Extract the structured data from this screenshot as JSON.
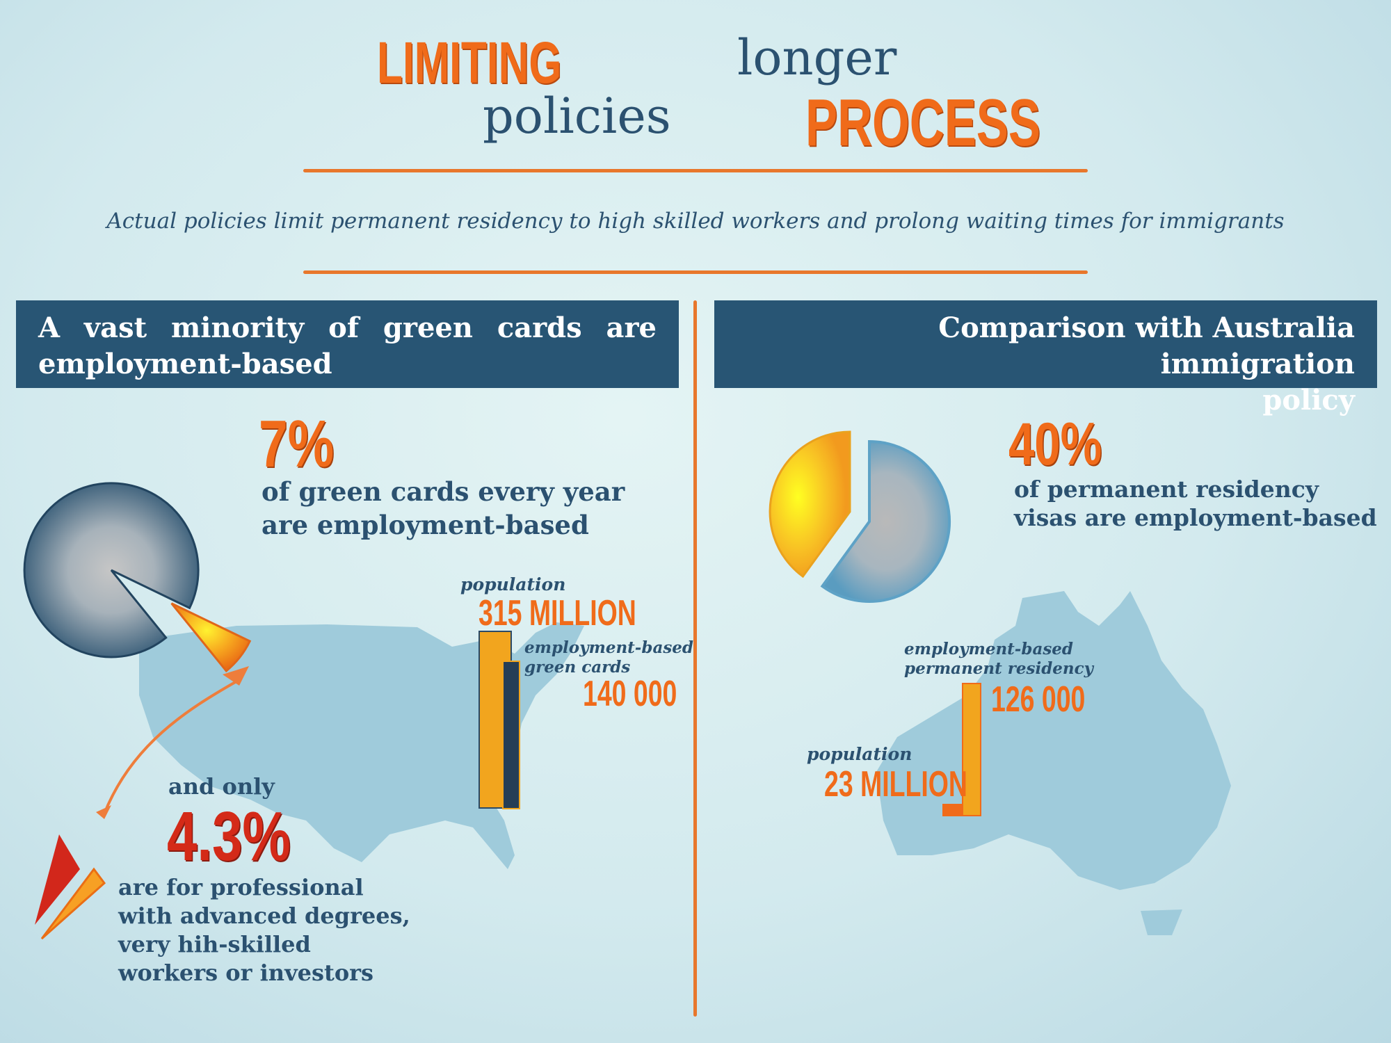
{
  "title": {
    "word1": "LIMITING",
    "word2": "policies",
    "word3": "longer",
    "word4": "PROCESS"
  },
  "subtitle": "Actual policies limit permanent residency to high skilled workers and prolong waiting times for immigrants",
  "colors": {
    "orange": "#f06b1a",
    "navy": "#285574",
    "map_blue": "#9fcbdb",
    "bar_yellow": "#f2a51e"
  },
  "left": {
    "header": "A vast minority of green cards are employment-based",
    "pct": "7%",
    "pct_desc_line1": "of green cards every year",
    "pct_desc_line2": "are employment-based",
    "pie_share": 0.07,
    "population_label": "population",
    "population_value": "315 MILLION",
    "cards_label_line1": "employment-based",
    "cards_label_line2": "green cards",
    "cards_value": "140 000",
    "and_only": "and only",
    "pct2": "4.3%",
    "pct2_desc": [
      "are for professional",
      "with advanced degrees,",
      "very hih-skilled",
      "workers or investors"
    ]
  },
  "right": {
    "header_line1": "Comparison with Australia immigration",
    "header_line2": "policy",
    "pct": "40%",
    "pct_desc_line1": "of permanent residency",
    "pct_desc_line2": "visas are employment-based",
    "pie_share": 0.4,
    "pr_label_line1": "employment-based",
    "pr_label_line2": "permanent residency",
    "pr_value": "126 000",
    "population_label": "population",
    "population_value": "23 MILLION"
  }
}
